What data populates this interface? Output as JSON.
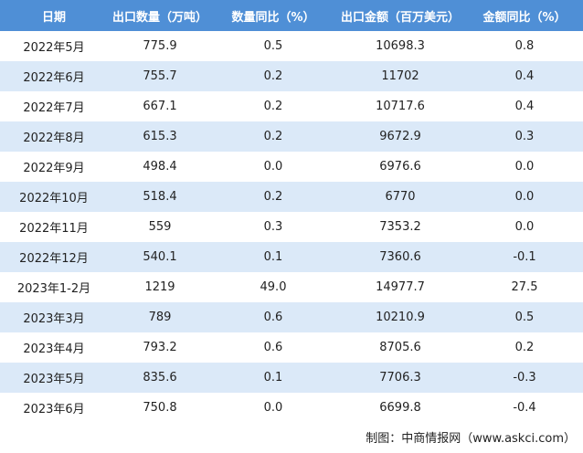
{
  "headers": [
    "日期",
    "出口数量（万吨）",
    "数量同比（%）",
    "出口金额（百万美元）",
    "金额同比（%）"
  ],
  "rows": [
    [
      "2022年5月",
      "775.9",
      "0.5",
      "10698.3",
      "0.8"
    ],
    [
      "2022年6月",
      "755.7",
      "0.2",
      "11702",
      "0.4"
    ],
    [
      "2022年7月",
      "667.1",
      "0.2",
      "10717.6",
      "0.4"
    ],
    [
      "2022年8月",
      "615.3",
      "0.2",
      "9672.9",
      "0.3"
    ],
    [
      "2022年9月",
      "498.4",
      "0.0",
      "6976.6",
      "0.0"
    ],
    [
      "2022年10月",
      "518.4",
      "0.2",
      "6770",
      "0.0"
    ],
    [
      "2022年11月",
      "559",
      "0.3",
      "7353.2",
      "0.0"
    ],
    [
      "2022年12月",
      "540.1",
      "0.1",
      "7360.6",
      "-0.1"
    ],
    [
      "2023年1-2月",
      "1219",
      "49.0",
      "14977.7",
      "27.5"
    ],
    [
      "2023年3月",
      "789",
      "0.6",
      "10210.9",
      "0.5"
    ],
    [
      "2023年4月",
      "793.2",
      "0.6",
      "8705.6",
      "0.2"
    ],
    [
      "2023年5月",
      "835.6",
      "0.1",
      "7706.3",
      "-0.3"
    ],
    [
      "2023年6月",
      "750.8",
      "0.0",
      "6699.8",
      "-0.4"
    ]
  ],
  "source": "制图：中商情报网（www.askci.com）",
  "colors": {
    "header_bg": "#4f8fd6",
    "stripe_bg": "#dbe9f8"
  }
}
